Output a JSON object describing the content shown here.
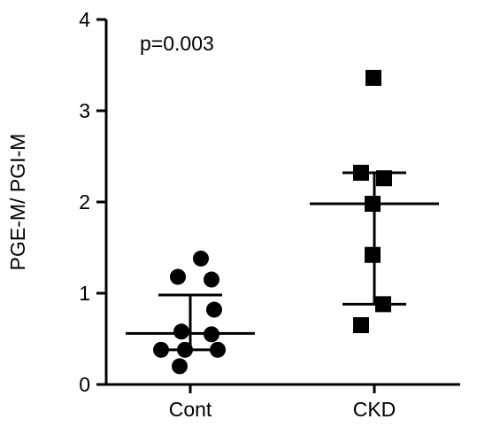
{
  "chart_data": {
    "type": "scatter",
    "ylabel": "PGE-M/ PGI-M",
    "xlabel": "",
    "ylim": [
      0,
      4
    ],
    "yticks": [
      "0",
      "1",
      "2",
      "3",
      "4"
    ],
    "categories": [
      "Cont",
      "CKD"
    ],
    "annotation": "p=0.003",
    "grid": false,
    "series": [
      {
        "category": "Cont",
        "marker": "circle",
        "values": [
          1.38,
          1.18,
          1.15,
          0.82,
          0.58,
          0.55,
          0.38,
          0.38,
          0.38,
          0.2
        ],
        "mean": 0.56,
        "sd_upper": 0.98,
        "sd_lower": 0.38
      },
      {
        "category": "CKD",
        "marker": "square",
        "values": [
          3.36,
          2.32,
          2.26,
          1.98,
          1.42,
          0.88,
          0.65
        ],
        "mean": 1.98,
        "sd_upper": 2.32,
        "sd_lower": 0.88
      }
    ],
    "colors": {
      "marks": "#000000",
      "axis": "#000000",
      "background": "#ffffff"
    }
  }
}
